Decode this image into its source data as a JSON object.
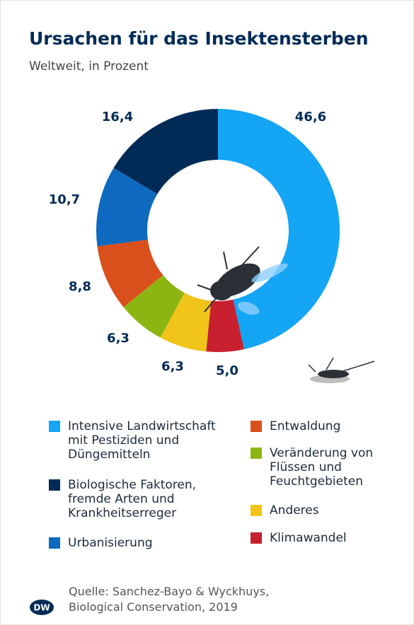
{
  "chart_data": {
    "type": "donut",
    "title": "Ursachen für das Insektensterben",
    "subtitle": "Weltweit, in Prozent",
    "categories": [
      "Intensive Landwirtschaft mit Pestiziden und Düngemitteln",
      "Klimawandel",
      "Anderes",
      "Veränderung von Flüssen und Feuchtgebieten",
      "Entwaldung",
      "Urbanisierung",
      "Biologische Faktoren, fremde Arten und Krankheitserreger"
    ],
    "values": [
      46.6,
      5.0,
      6.3,
      6.3,
      8.8,
      10.7,
      16.4
    ],
    "value_labels": [
      "46,6",
      "5,0",
      "6,3",
      "6,3",
      "8,8",
      "10,7",
      "16,4"
    ],
    "colors": [
      "#14a5f5",
      "#c8202f",
      "#f0c419",
      "#8cb512",
      "#d9501c",
      "#0d6abf",
      "#002b57"
    ],
    "source": [
      "Quelle: Sanchez-Bayo & Wyckhuys,",
      "Biological Conservation, 2019"
    ],
    "logo": "DW"
  }
}
